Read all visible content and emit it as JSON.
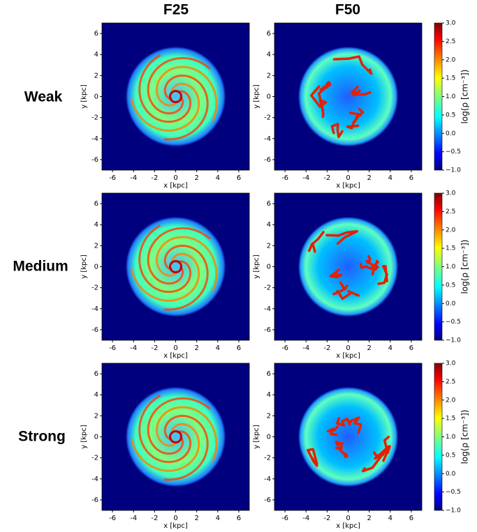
{
  "column_titles": [
    "F25",
    "F50"
  ],
  "row_labels": [
    "Weak",
    "Medium",
    "Strong"
  ],
  "chart_data": [
    {
      "type": "heatmap",
      "xlabel": "x [kpc]",
      "ylabel": "y [kpc]",
      "xlim": [
        -7,
        7
      ],
      "ylim": [
        -7,
        7
      ],
      "xticks": [
        -6,
        -4,
        -2,
        0,
        2,
        4,
        6
      ],
      "yticks": [
        -6,
        -4,
        -2,
        0,
        2,
        4,
        6
      ],
      "colormap": "jet"
    },
    {
      "type": "heatmap",
      "xlabel": "x [kpc]",
      "ylabel": "y [kpc]",
      "xlim": [
        -7,
        7
      ],
      "ylim": [
        -7,
        7
      ],
      "xticks": [
        -6,
        -4,
        -2,
        0,
        2,
        4,
        6
      ],
      "yticks": [
        -6,
        -4,
        -2,
        0,
        2,
        4,
        6
      ],
      "colormap": "jet",
      "colorbar": {
        "label": "log(ρ [cm⁻³])",
        "clim": [
          -1,
          3
        ],
        "ticks": [
          {
            "value": -1,
            "label": "−1.0"
          },
          {
            "value": -0.5,
            "label": "−0.5"
          },
          {
            "value": 0,
            "label": "0.0"
          },
          {
            "value": 0.5,
            "label": "0.5"
          },
          {
            "value": 1,
            "label": "1.0"
          },
          {
            "value": 1.5,
            "label": "1.5"
          },
          {
            "value": 2,
            "label": "2.0"
          },
          {
            "value": 2.5,
            "label": "2.5"
          },
          {
            "value": 3,
            "label": "3.0"
          }
        ]
      }
    },
    {
      "type": "heatmap",
      "xlabel": "x [kpc]",
      "ylabel": "y [kpc]",
      "xlim": [
        -7,
        7
      ],
      "ylim": [
        -7,
        7
      ],
      "xticks": [
        -6,
        -4,
        -2,
        0,
        2,
        4,
        6
      ],
      "yticks": [
        -6,
        -4,
        -2,
        0,
        2,
        4,
        6
      ],
      "colormap": "jet"
    },
    {
      "type": "heatmap",
      "xlabel": "x [kpc]",
      "ylabel": "y [kpc]",
      "xlim": [
        -7,
        7
      ],
      "ylim": [
        -7,
        7
      ],
      "xticks": [
        -6,
        -4,
        -2,
        0,
        2,
        4,
        6
      ],
      "yticks": [
        -6,
        -4,
        -2,
        0,
        2,
        4,
        6
      ],
      "colormap": "jet",
      "colorbar": {
        "label": "log(ρ [cm⁻³])",
        "clim": [
          -1,
          3
        ],
        "ticks": [
          {
            "value": -1,
            "label": "−1.0"
          },
          {
            "value": -0.5,
            "label": "−0.5"
          },
          {
            "value": 0,
            "label": "0.0"
          },
          {
            "value": 0.5,
            "label": "0.5"
          },
          {
            "value": 1,
            "label": "1.0"
          },
          {
            "value": 1.5,
            "label": "1.5"
          },
          {
            "value": 2,
            "label": "2.0"
          },
          {
            "value": 2.5,
            "label": "2.5"
          },
          {
            "value": 3,
            "label": "3.0"
          }
        ]
      }
    },
    {
      "type": "heatmap",
      "xlabel": "x [kpc]",
      "ylabel": "y [kpc]",
      "xlim": [
        -7,
        7
      ],
      "ylim": [
        -7,
        7
      ],
      "xticks": [
        -6,
        -4,
        -2,
        0,
        2,
        4,
        6
      ],
      "yticks": [
        -6,
        -4,
        -2,
        0,
        2,
        4,
        6
      ],
      "colormap": "jet"
    },
    {
      "type": "heatmap",
      "xlabel": "x [kpc]",
      "ylabel": "y [kpc]",
      "xlim": [
        -7,
        7
      ],
      "ylim": [
        -7,
        7
      ],
      "xticks": [
        -6,
        -4,
        -2,
        0,
        2,
        4,
        6
      ],
      "yticks": [
        -6,
        -4,
        -2,
        0,
        2,
        4,
        6
      ],
      "colormap": "jet",
      "colorbar": {
        "label": "log(ρ [cm⁻³])",
        "clim": [
          -1,
          3
        ],
        "ticks": [
          {
            "value": -1,
            "label": "−1.0"
          },
          {
            "value": -0.5,
            "label": "−0.5"
          },
          {
            "value": 0,
            "label": "0.0"
          },
          {
            "value": 0.5,
            "label": "0.5"
          },
          {
            "value": 1,
            "label": "1.0"
          },
          {
            "value": 1.5,
            "label": "1.5"
          },
          {
            "value": 2,
            "label": "2.0"
          },
          {
            "value": 2.5,
            "label": "2.5"
          },
          {
            "value": 3,
            "label": "3.0"
          }
        ]
      }
    }
  ]
}
